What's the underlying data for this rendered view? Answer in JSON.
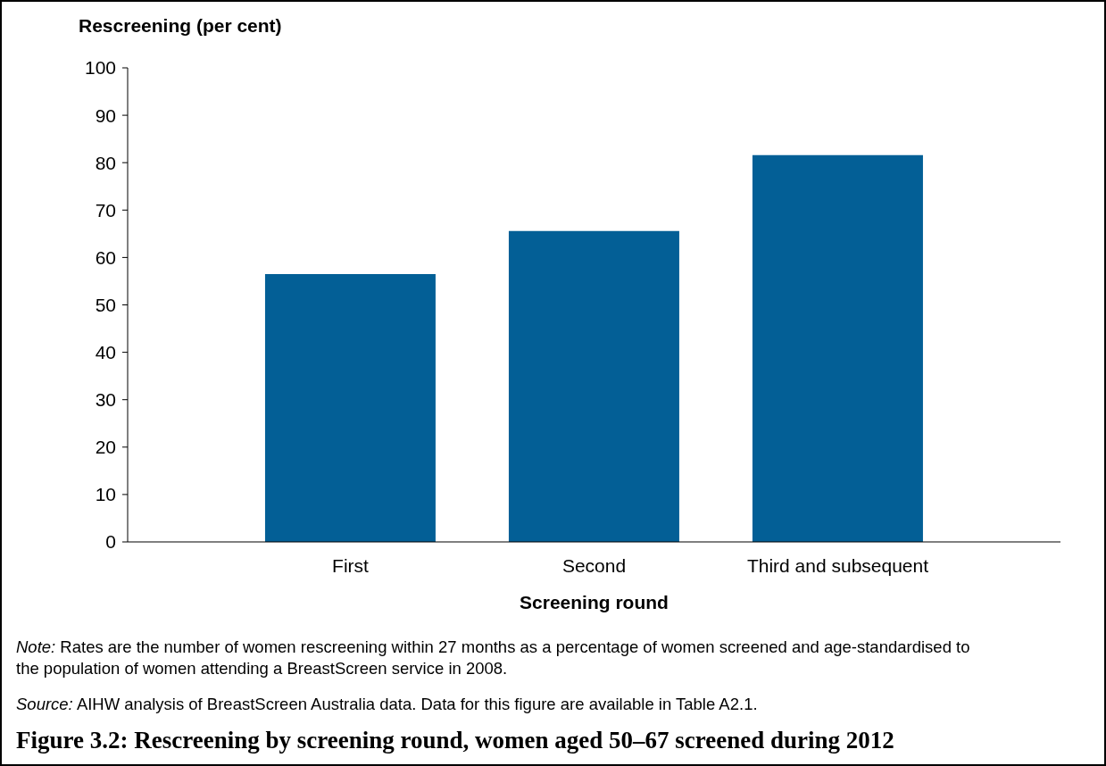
{
  "chart_data": {
    "type": "bar",
    "title": "Figure 3.2: Rescreening by screening round, women aged 50–67 screened during 2012",
    "xlabel": "Screening round",
    "ylabel": "Rescreening (per cent)",
    "categories": [
      "First",
      "Second",
      "Third and subsequent"
    ],
    "values": [
      56.5,
      65.6,
      81.6
    ],
    "color": "#035f96",
    "ylim": [
      0,
      100
    ],
    "yticks": [
      0,
      10,
      20,
      30,
      40,
      50,
      60,
      70,
      80,
      90,
      100
    ],
    "annotations": [
      "Note: Rates are the number of women rescreening within 27 months as a percentage of women screened and age-standardised to the population of women attending a BreastScreen service in 2008.",
      "Source: AIHW analysis of BreastScreen Australia data. Data for this figure are available in Table A2.1."
    ]
  }
}
